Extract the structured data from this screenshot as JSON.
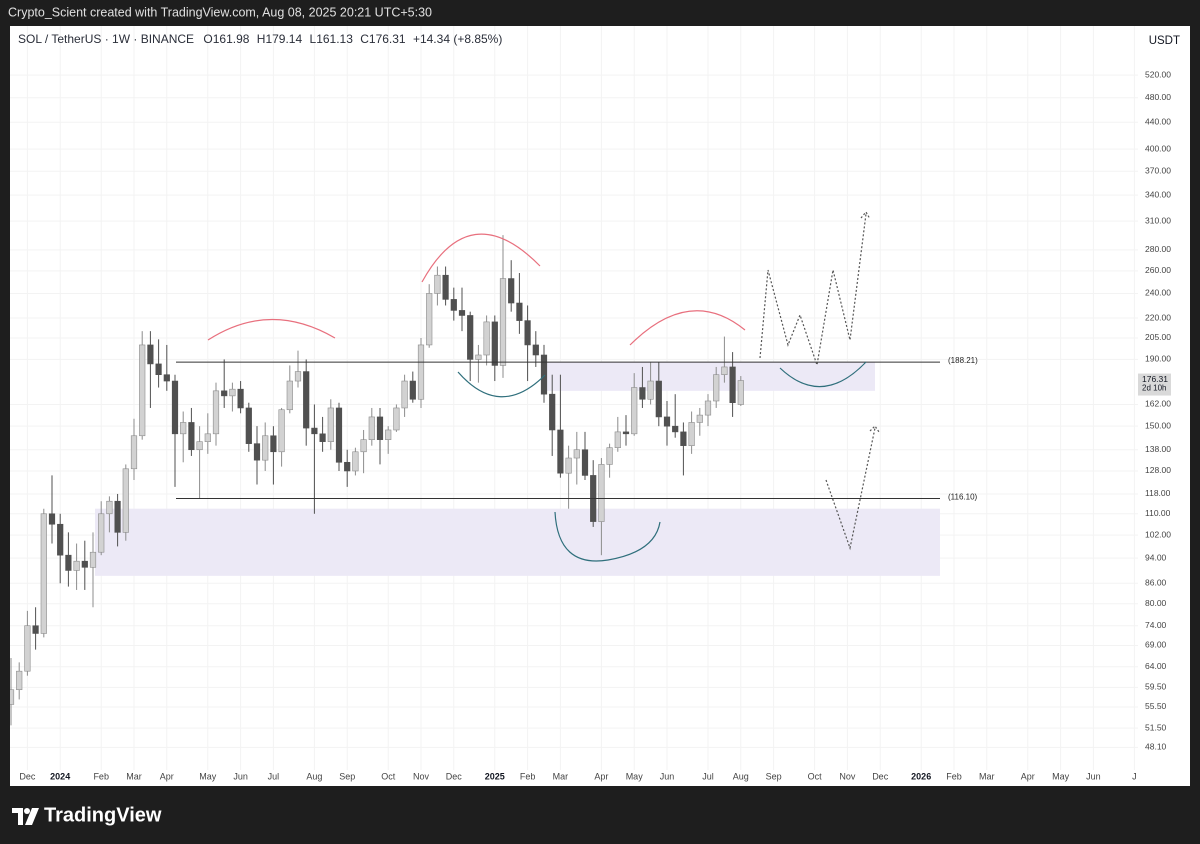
{
  "header": {
    "attribution": "Crypto_Scient created with TradingView.com, Aug 08, 2025 20:21 UTC+5:30"
  },
  "footer": {
    "brand": "TradingView"
  },
  "chart_data": {
    "type": "candlestick",
    "symbol": "SOL / TetherUS · 1W · BINANCE",
    "ohlc_labels": [
      "O",
      "H",
      "L",
      "C"
    ],
    "change": "+14.34 (+8.85%)",
    "currency": "USDT",
    "countdown": "2d 10h",
    "log_scale": true,
    "grid": true,
    "up_color": "#d2d2d2",
    "down_color": "#505050",
    "categories": [
      null,
      null,
      "Dec",
      null,
      null,
      null,
      "2024",
      null,
      null,
      null,
      null,
      "Feb",
      null,
      null,
      null,
      "Mar",
      null,
      null,
      null,
      "Apr",
      null,
      null,
      null,
      null,
      "May",
      null,
      null,
      null,
      "Jun",
      null,
      null,
      null,
      "Jul",
      null,
      null,
      null,
      null,
      "Aug",
      null,
      null,
      null,
      "Sep",
      null,
      null,
      null,
      null,
      "Oct",
      null,
      null,
      null,
      "Nov",
      null,
      null,
      null,
      "Dec",
      null,
      null,
      null,
      null,
      "2025",
      null,
      null,
      null,
      "Feb",
      null,
      null,
      null,
      "Mar",
      null,
      null,
      null,
      null,
      "Apr",
      null,
      null,
      null,
      "May",
      null,
      null,
      null,
      "Jun",
      null,
      null,
      null,
      null,
      "Jul",
      null,
      null,
      null,
      "Aug",
      null,
      null,
      null,
      "Sep",
      null,
      null,
      null,
      null,
      "Oct",
      null,
      null,
      null,
      "Nov",
      null,
      null,
      null,
      "Dec",
      null,
      null,
      null,
      null,
      "2026",
      null,
      null,
      null,
      "Feb",
      null,
      null,
      null,
      "Mar",
      null,
      null,
      null,
      null,
      "Apr",
      null,
      null,
      null,
      "May",
      null,
      null,
      null,
      "Jun",
      null,
      null,
      null,
      null,
      "J"
    ],
    "open": [
      56,
      59,
      63,
      74,
      72,
      110,
      106,
      95,
      90,
      93,
      91,
      96,
      110,
      115,
      103,
      129,
      145,
      200,
      187,
      180,
      176,
      146,
      152,
      138,
      142,
      146,
      170,
      167,
      171,
      160,
      141,
      133,
      145,
      137,
      159,
      176,
      182,
      149,
      146,
      142,
      160,
      132,
      128,
      137,
      143,
      155,
      143,
      148,
      160,
      176,
      165,
      200,
      240,
      256,
      235,
      226,
      222,
      190,
      193,
      217,
      186,
      253,
      232,
      218,
      200,
      193,
      168,
      148,
      127,
      134,
      138,
      126,
      107,
      131,
      139,
      147,
      146,
      172,
      165,
      176,
      155,
      150,
      147,
      140,
      152,
      156,
      164,
      180,
      185,
      161.98,
      null,
      null,
      null,
      null,
      null,
      null,
      null,
      null,
      null,
      null,
      null,
      null,
      null,
      null,
      null,
      null,
      null,
      null,
      null,
      null,
      null,
      null,
      null,
      null,
      null,
      null,
      null,
      null,
      null,
      null,
      null,
      null,
      null,
      null,
      null,
      null,
      null,
      null,
      null,
      null,
      null,
      null,
      null,
      null,
      null,
      null,
      null,
      null
    ],
    "high": [
      66,
      65,
      78,
      79,
      112,
      126,
      110,
      103,
      99,
      100,
      103,
      115,
      117,
      118,
      131,
      154,
      210,
      210,
      204,
      200,
      180,
      158,
      160,
      150,
      157,
      175,
      190,
      175,
      176,
      163,
      150,
      152,
      150,
      160,
      186,
      196,
      190,
      162,
      155,
      165,
      163,
      138,
      139,
      148,
      160,
      160,
      150,
      162,
      180,
      182,
      205,
      248,
      264,
      264,
      245,
      245,
      225,
      200,
      222,
      222,
      295,
      270,
      258,
      230,
      210,
      200,
      180,
      180,
      140,
      147,
      147,
      133,
      134,
      141,
      155,
      156,
      181,
      185,
      188,
      188,
      164,
      168,
      152,
      158,
      160,
      168,
      185,
      206,
      195,
      179.14,
      null,
      null,
      null,
      null,
      null,
      null,
      null,
      null,
      null,
      null,
      null,
      null,
      null,
      null,
      null,
      null,
      null,
      null,
      null,
      null,
      null,
      null,
      null,
      null,
      null,
      null,
      null,
      null,
      null,
      null,
      null,
      null,
      null,
      null,
      null,
      null,
      null,
      null,
      null,
      null,
      null,
      null,
      null,
      null,
      null,
      null,
      null,
      null
    ],
    "low": [
      52,
      57,
      62,
      68,
      71,
      99,
      86,
      85,
      84,
      84,
      79,
      95,
      103,
      98,
      100,
      124,
      143,
      160,
      172,
      170,
      121,
      132,
      135,
      116,
      136,
      140,
      160,
      158,
      157,
      137,
      122,
      128,
      122,
      130,
      157,
      172,
      140,
      110,
      137,
      138,
      128,
      121,
      126,
      127,
      140,
      131,
      136,
      147,
      155,
      163,
      160,
      198,
      230,
      230,
      218,
      210,
      176,
      175,
      186,
      176,
      178,
      225,
      208,
      176,
      185,
      163,
      135,
      125,
      112,
      122,
      124,
      105,
      95,
      125,
      137,
      140,
      145,
      160,
      162,
      150,
      140,
      144,
      126,
      136,
      145,
      150,
      160,
      175,
      155,
      161.13,
      null,
      null,
      null,
      null,
      null,
      null,
      null,
      null,
      null,
      null,
      null,
      null,
      null,
      null,
      null,
      null,
      null,
      null,
      null,
      null,
      null,
      null,
      null,
      null,
      null,
      null,
      null,
      null,
      null,
      null,
      null,
      null,
      null,
      null,
      null,
      null,
      null,
      null,
      null,
      null,
      null,
      null,
      null,
      null,
      null,
      null,
      null,
      null
    ],
    "close": [
      59,
      63,
      74,
      72,
      110,
      106,
      95,
      90,
      93,
      91,
      96,
      110,
      115,
      103,
      129,
      145,
      200,
      187,
      180,
      176,
      146,
      152,
      138,
      142,
      146,
      170,
      167,
      171,
      160,
      141,
      133,
      145,
      137,
      159,
      176,
      182,
      149,
      146,
      142,
      160,
      132,
      128,
      137,
      143,
      155,
      143,
      148,
      160,
      176,
      165,
      200,
      240,
      256,
      235,
      226,
      222,
      190,
      193,
      217,
      186,
      253,
      232,
      218,
      200,
      193,
      168,
      148,
      127,
      134,
      138,
      126,
      107,
      131,
      139,
      147,
      146,
      172,
      165,
      176,
      155,
      150,
      147,
      140,
      152,
      156,
      164,
      180,
      185,
      163,
      176.31,
      null,
      null,
      null,
      null,
      null,
      null,
      null,
      null,
      null,
      null,
      null,
      null,
      null,
      null,
      null,
      null,
      null,
      null,
      null,
      null,
      null,
      null,
      null,
      null,
      null,
      null,
      null,
      null,
      null,
      null,
      null,
      null,
      null,
      null,
      null,
      null,
      null,
      null,
      null,
      null,
      null,
      null,
      null,
      null,
      null,
      null,
      null,
      null
    ],
    "ylim": [
      44.4,
      610
    ],
    "yticks": [
      {
        "value": 520,
        "label": "520.00"
      },
      {
        "value": 480,
        "label": "480.00"
      },
      {
        "value": 440,
        "label": "440.00"
      },
      {
        "value": 400,
        "label": "400.00"
      },
      {
        "value": 370,
        "label": "370.00"
      },
      {
        "value": 340,
        "label": "340.00"
      },
      {
        "value": 310,
        "label": "310.00"
      },
      {
        "value": 280,
        "label": "280.00"
      },
      {
        "value": 260,
        "label": "260.00"
      },
      {
        "value": 240,
        "label": "240.00"
      },
      {
        "value": 220,
        "label": "220.00"
      },
      {
        "value": 205,
        "label": "205.00"
      },
      {
        "value": 190,
        "label": "190.00"
      },
      {
        "value": 162,
        "label": "162.00"
      },
      {
        "value": 150,
        "label": "150.00"
      },
      {
        "value": 138,
        "label": "138.00"
      },
      {
        "value": 128,
        "label": "128.00"
      },
      {
        "value": 118,
        "label": "118.00"
      },
      {
        "value": 110,
        "label": "110.00"
      },
      {
        "value": 102,
        "label": "102.00"
      },
      {
        "value": 94,
        "label": "94.00"
      },
      {
        "value": 86,
        "label": "86.00"
      },
      {
        "value": 80,
        "label": "80.00"
      },
      {
        "value": 74,
        "label": "74.00"
      },
      {
        "value": 69,
        "label": "69.00"
      },
      {
        "value": 64,
        "label": "64.00"
      },
      {
        "value": 59.5,
        "label": "59.50"
      },
      {
        "value": 55.5,
        "label": "55.50"
      },
      {
        "value": 51.5,
        "label": "51.50"
      },
      {
        "value": 48.1,
        "label": "48.10"
      }
    ],
    "levels": [
      {
        "value": 188.21,
        "label": "(188.21)"
      },
      {
        "value": 116.1,
        "label": "(116.10)"
      }
    ],
    "zones": [
      {
        "low": 88.3,
        "high": 112
      },
      {
        "low": 170,
        "high": 188.2
      }
    ]
  }
}
